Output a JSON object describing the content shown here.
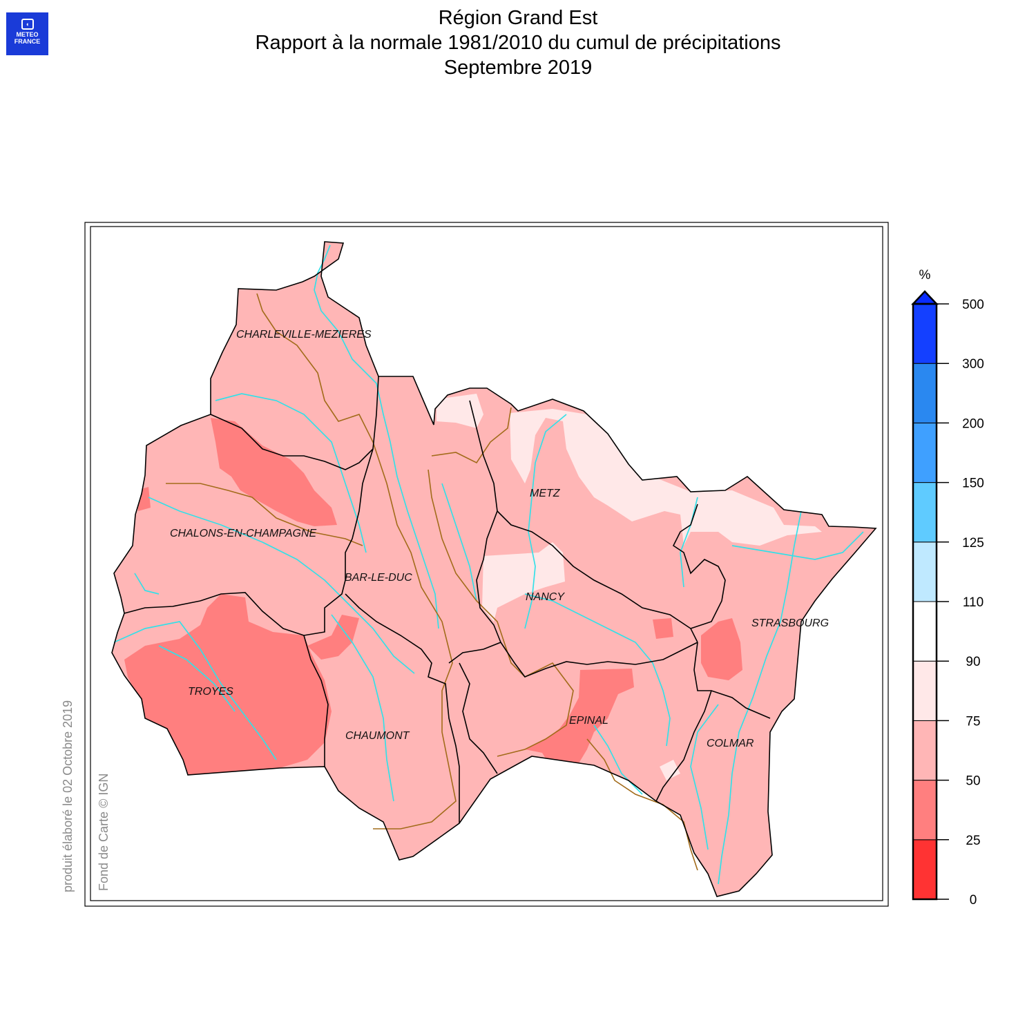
{
  "logo": {
    "line1": "METEO",
    "line2": "FRANCE"
  },
  "title": {
    "line1": "Région Grand Est",
    "line2": "Rapport à la normale 1981/2010 du cumul de précipitations",
    "line3": "Septembre 2019"
  },
  "credits": {
    "date": "produit élaboré le 02 Octobre 2019",
    "source": "Fond de Carte © IGN"
  },
  "cities": [
    {
      "name": "CHARLEVILLE-MEZIERES"
    },
    {
      "name": "METZ"
    },
    {
      "name": "CHALONS-EN-CHAMPAGNE"
    },
    {
      "name": "BAR-LE-DUC"
    },
    {
      "name": "NANCY"
    },
    {
      "name": "STRASBOURG"
    },
    {
      "name": "TROYES"
    },
    {
      "name": "CHAUMONT"
    },
    {
      "name": "EPINAL"
    },
    {
      "name": "COLMAR"
    }
  ],
  "legend": {
    "unit": "%",
    "ticks": [
      "0",
      "25",
      "50",
      "75",
      "90",
      "110",
      "125",
      "150",
      "200",
      "300",
      "500"
    ],
    "bins": [
      {
        "from": 0,
        "to": 25,
        "color": "#ff3333"
      },
      {
        "from": 25,
        "to": 50,
        "color": "#ff7f7f"
      },
      {
        "from": 50,
        "to": 75,
        "color": "#ffb6b6"
      },
      {
        "from": 75,
        "to": 90,
        "color": "#ffe8e8"
      },
      {
        "from": 90,
        "to": 110,
        "color": "#ffffff"
      },
      {
        "from": 110,
        "to": 125,
        "color": "#bfe9ff"
      },
      {
        "from": 125,
        "to": 150,
        "color": "#5fcbff"
      },
      {
        "from": 150,
        "to": 200,
        "color": "#3fa0ff"
      },
      {
        "from": 200,
        "to": 300,
        "color": "#2a88f0"
      },
      {
        "from": 300,
        "to": 500,
        "color": "#1440ff"
      }
    ],
    "overflow_color": "#0a2cff"
  },
  "colors": {
    "lake": "#ff7f7f",
    "base": "#ffb6b6",
    "light": "#ffe8e8",
    "river": "#33e0e8",
    "basin_line": "#a26b1a",
    "border": "#000000"
  }
}
